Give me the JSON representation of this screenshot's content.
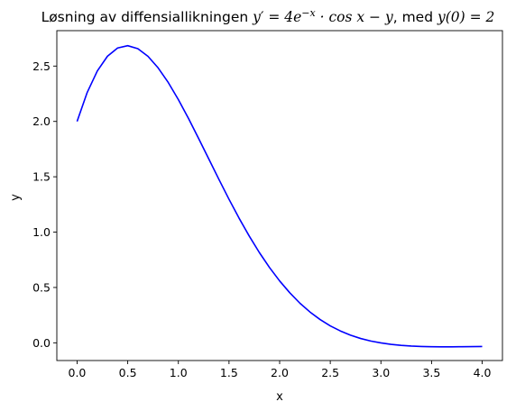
{
  "chart_data": {
    "type": "line",
    "title": {
      "prefix": "Løsning av diffensiallikningen ",
      "equation": "y′ = 4e−x · cos x − y",
      "eq_lhs": "y′ = 4",
      "eq_base": "e",
      "eq_exp": "−x",
      "eq_rest": " · cos x − y",
      "sep": ", med ",
      "initial_condition": "y(0) = 2"
    },
    "xlabel": "x",
    "ylabel": "y",
    "xlim": [
      -0.2,
      4.2
    ],
    "ylim": [
      -0.16,
      2.82
    ],
    "xticks": [
      0.0,
      0.5,
      1.0,
      1.5,
      2.0,
      2.5,
      3.0,
      3.5,
      4.0
    ],
    "xtick_labels": [
      "0.0",
      "0.5",
      "1.0",
      "1.5",
      "2.0",
      "2.5",
      "3.0",
      "3.5",
      "4.0"
    ],
    "yticks": [
      0.0,
      0.5,
      1.0,
      1.5,
      2.0,
      2.5
    ],
    "ytick_labels": [
      "0.0",
      "0.5",
      "1.0",
      "1.5",
      "2.0",
      "2.5"
    ],
    "grid": false,
    "series": [
      {
        "color": "#0000ff",
        "x": [
          0.0,
          0.1,
          0.2,
          0.3,
          0.4,
          0.5,
          0.6,
          0.7,
          0.8,
          0.9,
          1.0,
          1.1,
          1.2,
          1.3,
          1.4,
          1.5,
          1.6,
          1.7,
          1.8,
          1.9,
          2.0,
          2.1,
          2.2,
          2.3,
          2.4,
          2.5,
          2.6,
          2.7,
          2.8,
          2.9,
          3.0,
          3.1,
          3.2,
          3.3,
          3.4,
          3.5,
          3.6,
          3.7,
          3.8,
          3.9,
          4.0
        ],
        "y": [
          2.0,
          2.262,
          2.456,
          2.589,
          2.663,
          2.684,
          2.657,
          2.588,
          2.484,
          2.352,
          2.197,
          2.027,
          1.846,
          1.662,
          1.477,
          1.297,
          1.125,
          0.964,
          0.815,
          0.68,
          0.559,
          0.452,
          0.358,
          0.278,
          0.21,
          0.153,
          0.107,
          0.069,
          0.039,
          0.016,
          -0.001,
          -0.014,
          -0.023,
          -0.029,
          -0.033,
          -0.035,
          -0.036,
          -0.036,
          -0.035,
          -0.034,
          -0.033
        ]
      }
    ]
  }
}
